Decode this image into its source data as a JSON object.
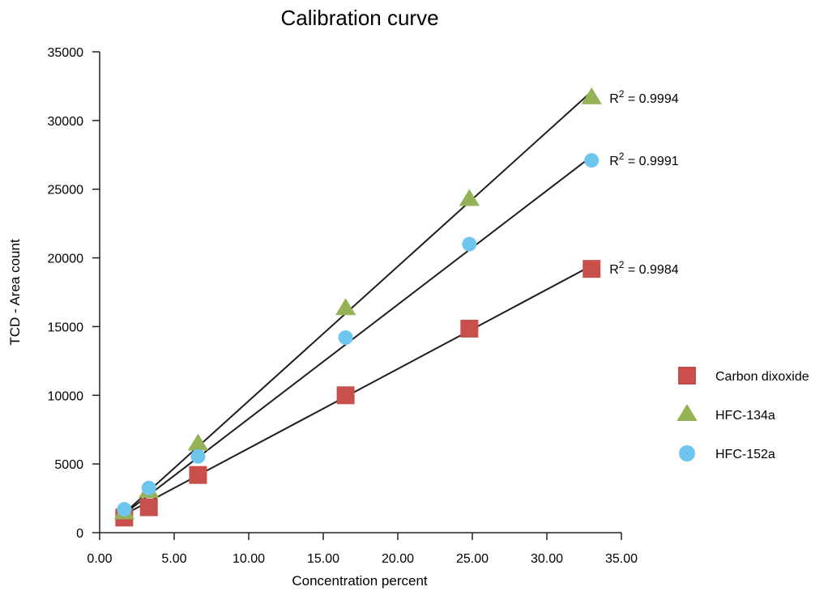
{
  "chart_data": {
    "type": "scatter",
    "title": "Calibration curve",
    "xlabel": "Concentration percent",
    "ylabel": "TCD - Area count",
    "xlim": [
      0,
      35
    ],
    "ylim": [
      0,
      35000
    ],
    "x_ticks": [
      "0.00",
      "5.00",
      "10.00",
      "15.00",
      "20.00",
      "25.00",
      "30.00",
      "35.00"
    ],
    "y_ticks": [
      "0",
      "5000",
      "10000",
      "15000",
      "20000",
      "25000",
      "30000",
      "35000"
    ],
    "grid": false,
    "legend_position": "right",
    "series": [
      {
        "name": "Carbon dixoxide",
        "marker": "square",
        "color": "#c9504a",
        "x": [
          1.65,
          3.3,
          6.6,
          16.5,
          24.8,
          33.0
        ],
        "y": [
          1100,
          1850,
          4200,
          10000,
          14850,
          19200
        ],
        "fit": {
          "slope": 578,
          "intercept": 360,
          "x_range": [
            1.65,
            33.0
          ]
        },
        "r2": {
          "prefix": "R",
          "sup": "2",
          "value": " = 0.9984"
        }
      },
      {
        "name": "HFC-134a",
        "marker": "triangle",
        "color": "#93b356",
        "x": [
          1.65,
          3.3,
          6.6,
          16.5,
          24.8,
          33.0
        ],
        "y": [
          1450,
          3000,
          6450,
          16300,
          24250,
          31650
        ],
        "fit": {
          "slope": 979,
          "intercept": -200,
          "x_range": [
            1.65,
            33.0
          ]
        },
        "r2": {
          "prefix": "R",
          "sup": "2",
          "value": " = 0.9994"
        }
      },
      {
        "name": "HFC-152a",
        "marker": "circle",
        "color": "#6ec6ee",
        "x": [
          1.65,
          3.3,
          6.6,
          16.5,
          24.8,
          33.0
        ],
        "y": [
          1700,
          3250,
          5550,
          14200,
          21000,
          27100
        ],
        "fit": {
          "slope": 830,
          "intercept": 0,
          "x_range": [
            1.65,
            33.0
          ]
        },
        "r2": {
          "prefix": "R",
          "sup": "2",
          "value": " = 0.9991"
        }
      }
    ]
  }
}
